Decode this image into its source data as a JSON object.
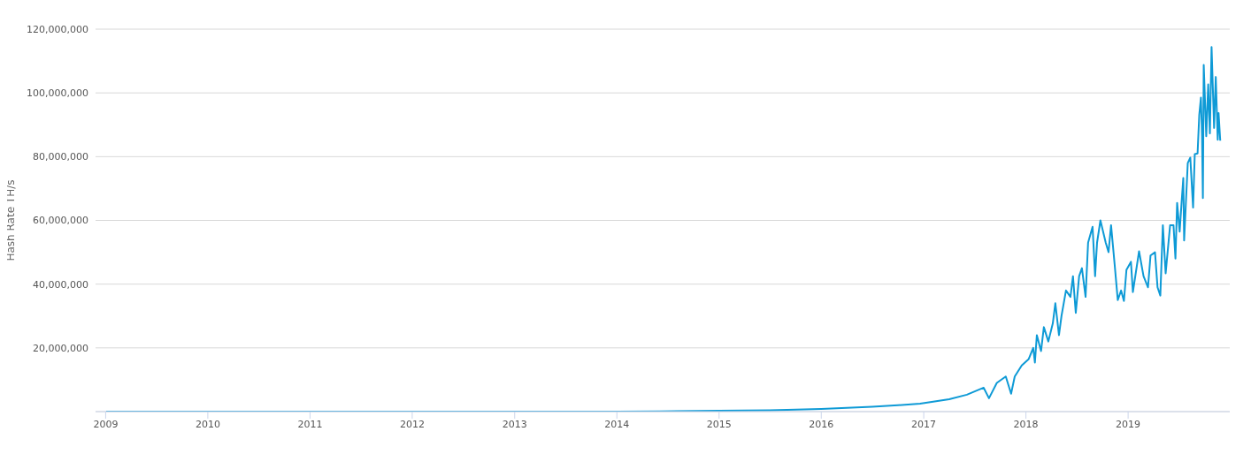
{
  "chart_data": {
    "type": "line",
    "ylabel": "Hash Rate TH/s",
    "x": [
      "2009-01-03",
      "2011-01-01",
      "2013-01-01",
      "2014-01-01",
      "2014-06-01",
      "2015-01-01",
      "2015-07-01",
      "2016-01-01",
      "2016-07-01",
      "2016-10-01",
      "2016-12-19",
      "2017-04-02",
      "2017-06-04",
      "2017-08-03",
      "2017-08-22",
      "2017-09-19",
      "2017-10-21",
      "2017-11-09",
      "2017-11-22",
      "2017-12-17",
      "2018-01-11",
      "2018-01-27",
      "2018-02-02",
      "2018-02-09",
      "2018-02-24",
      "2018-03-06",
      "2018-03-22",
      "2018-04-07",
      "2018-04-16",
      "2018-04-29",
      "2018-05-08",
      "2018-05-24",
      "2018-06-09",
      "2018-06-18",
      "2018-06-28",
      "2018-07-10",
      "2018-07-20",
      "2018-08-02",
      "2018-08-11",
      "2018-08-27",
      "2018-09-05",
      "2018-09-12",
      "2018-09-24",
      "2018-10-13",
      "2018-10-23",
      "2018-11-01",
      "2018-11-14",
      "2018-11-25",
      "2018-12-07",
      "2018-12-17",
      "2018-12-26",
      "2019-01-11",
      "2019-01-18",
      "2019-02-09",
      "2019-02-25",
      "2019-03-13",
      "2019-03-22",
      "2019-04-07",
      "2019-04-16",
      "2019-04-26",
      "2019-05-05",
      "2019-05-15",
      "2019-05-31",
      "2019-06-12",
      "2019-06-19",
      "2019-06-25",
      "2019-07-04",
      "2019-07-11",
      "2019-07-17",
      "2019-07-20",
      "2019-08-02",
      "2019-08-11",
      "2019-08-21",
      "2019-08-27",
      "2019-09-06",
      "2019-09-12",
      "2019-09-18",
      "2019-09-22",
      "2019-09-25",
      "2019-09-28",
      "2019-10-07",
      "2019-10-14",
      "2019-10-20",
      "2019-10-26",
      "2019-11-04",
      "2019-11-10",
      "2019-11-17",
      "2019-11-20",
      "2019-11-26"
    ],
    "series": [
      {
        "color": "#0e9ad6",
        "values": [
          0,
          0,
          0,
          0,
          100000,
          300000,
          400000,
          800000,
          1500000,
          2000000,
          2500000,
          3900000,
          5300000,
          7500000,
          4200000,
          9000000,
          11000000,
          5600000,
          11000000,
          14500000,
          16500000,
          20000000,
          15400000,
          24000000,
          19000000,
          26500000,
          22000000,
          27700000,
          34000000,
          24000000,
          30000000,
          38000000,
          36000000,
          42500000,
          31000000,
          42500000,
          45000000,
          36000000,
          53000000,
          58000000,
          42500000,
          53000000,
          60000000,
          53000000,
          50000000,
          58500000,
          46000000,
          35000000,
          38000000,
          34700000,
          44500000,
          47000000,
          37500000,
          50300000,
          42500000,
          39000000,
          49000000,
          50000000,
          39000000,
          36400000,
          58500000,
          43400000,
          58500000,
          58500000,
          48000000,
          65500000,
          56500000,
          65700000,
          73300000,
          53700000,
          78000000,
          79700000,
          64000000,
          80800000,
          81000000,
          93000000,
          98500000,
          86400000,
          67000000,
          108800000,
          86400000,
          102700000,
          87300000,
          114400000,
          89000000,
          105000000,
          85300000,
          93700000,
          85000000
        ]
      }
    ],
    "xlim": [
      "2008-11-26",
      "2019-12-30"
    ],
    "xticks": [
      "2009",
      "2010",
      "2011",
      "2012",
      "2013",
      "2014",
      "2015",
      "2016",
      "2017",
      "2018",
      "2019"
    ],
    "ylim": [
      0,
      120000000
    ],
    "yticks": [
      {
        "value": 20000000,
        "label": "20,000,000"
      },
      {
        "value": 40000000,
        "label": "40,000,000"
      },
      {
        "value": 60000000,
        "label": "60,000,000"
      },
      {
        "value": 80000000,
        "label": "80,000,000"
      },
      {
        "value": 100000000,
        "label": "100,000,000"
      },
      {
        "value": 120000000,
        "label": "120,000,000"
      }
    ],
    "grid": "y",
    "legend": false,
    "marker": "none",
    "line_style": "solid"
  }
}
